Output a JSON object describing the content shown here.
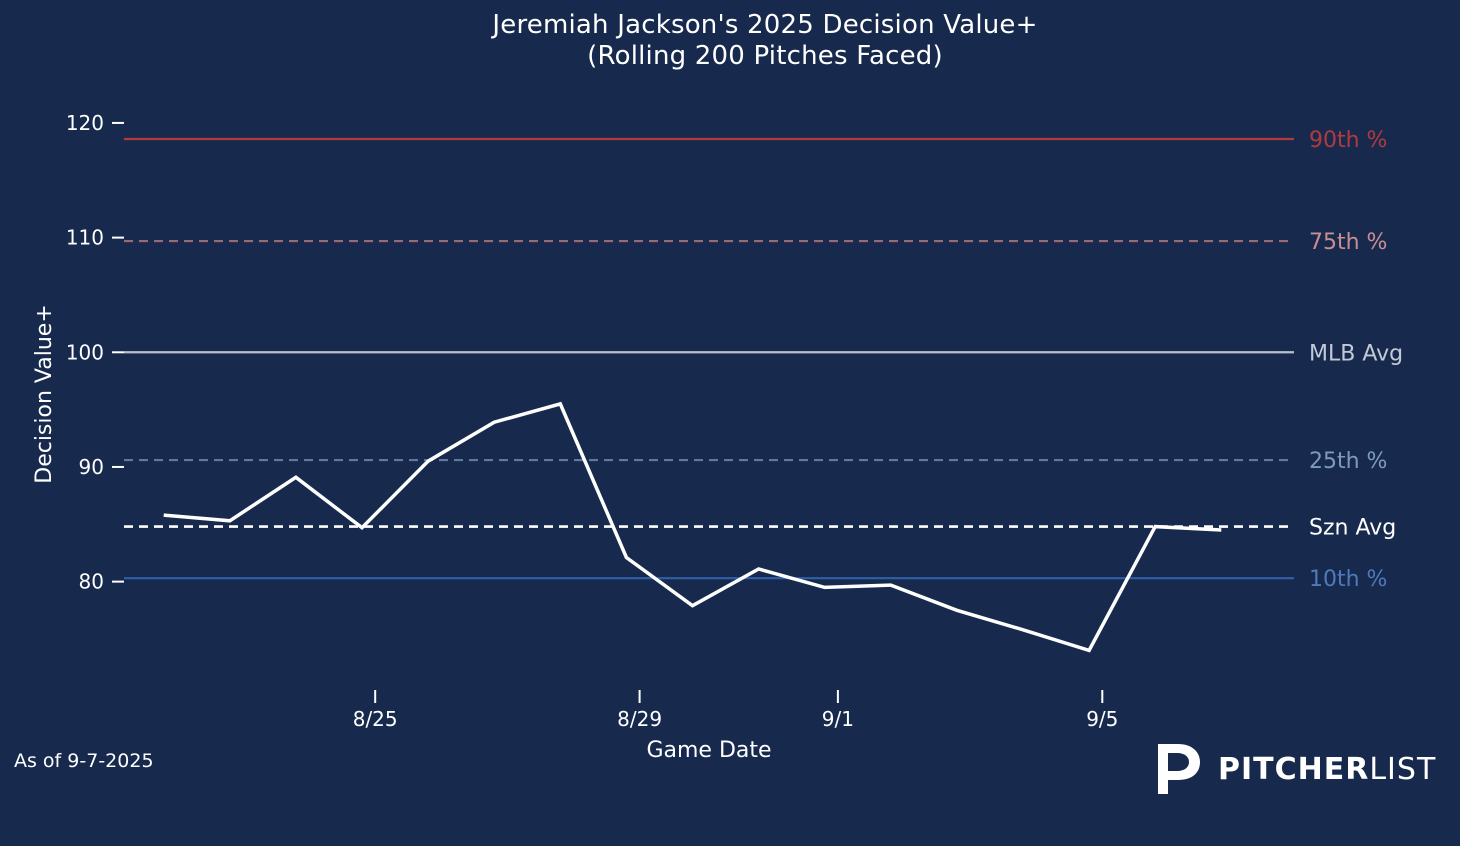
{
  "title": "Jeremiah Jackson's 2025 Decision Value+",
  "subtitle": "(Rolling 200 Pitches Faced)",
  "footnote": "As of 9-7-2025",
  "brand": {
    "name_bold": "PITCHER",
    "name_light": "LIST",
    "logo_icon": "pitcherlist-p-logo-icon"
  },
  "colors": {
    "background": "#172a4d",
    "line": "#ffffff",
    "p90": "#b23a3f",
    "p75": "#b27d84",
    "mlb_avg": "#b9bfcf",
    "p25": "#5e7aa3",
    "p10": "#2f5fa8",
    "szn_avg": "#ffffff"
  },
  "chart_data": {
    "type": "line",
    "title": "Jeremiah Jackson's 2025 Decision Value+",
    "subtitle": "(Rolling 200 Pitches Faced)",
    "xlabel": "Game Date",
    "ylabel": "Decision Value+",
    "x_ticks": [
      {
        "label": "8/25",
        "x": 3
      },
      {
        "label": "8/29",
        "x": 7
      },
      {
        "label": "9/1",
        "x": 10
      },
      {
        "label": "9/5",
        "x": 14
      }
    ],
    "y_ticks": [
      80,
      90,
      100,
      110,
      120
    ],
    "xlim": [
      -0.8,
      16.9
    ],
    "ylim": [
      70.2,
      122
    ],
    "series": [
      {
        "x": [
          -0.2,
          0.8,
          1.8,
          2.8,
          3.8,
          4.8,
          5.8,
          6.8,
          7.8,
          8.8,
          9.8,
          10.8,
          11.8,
          12.8,
          13.8,
          14.8,
          15.8
        ],
        "y": [
          85.8,
          85.3,
          89.1,
          84.7,
          90.5,
          93.9,
          95.5,
          82.1,
          77.9,
          81.1,
          79.5,
          79.7,
          77.5,
          75.8,
          74.0,
          84.8,
          84.5
        ]
      }
    ],
    "reference_lines": [
      {
        "label": "90th %",
        "y": 118.6,
        "style": "solid",
        "color": "#b23a3f",
        "text_color": "#b23a3f"
      },
      {
        "label": "75th %",
        "y": 109.7,
        "style": "dashed",
        "color": "#9a6a74",
        "text_color": "#c98e91"
      },
      {
        "label": "MLB Avg",
        "y": 100.0,
        "style": "solid",
        "color": "#b9bfcf",
        "text_color": "#c4c9d6"
      },
      {
        "label": "25th %",
        "y": 90.6,
        "style": "dashed",
        "color": "#5e7aa3",
        "text_color": "#7f9abf"
      },
      {
        "label": "Szn Avg",
        "y": 84.8,
        "style": "dashed",
        "color": "#ffffff",
        "text_color": "#ffffff"
      },
      {
        "label": "10th %",
        "y": 80.3,
        "style": "solid",
        "color": "#2f5fa8",
        "text_color": "#4f79b8"
      }
    ],
    "grid": false,
    "legend": "none"
  }
}
